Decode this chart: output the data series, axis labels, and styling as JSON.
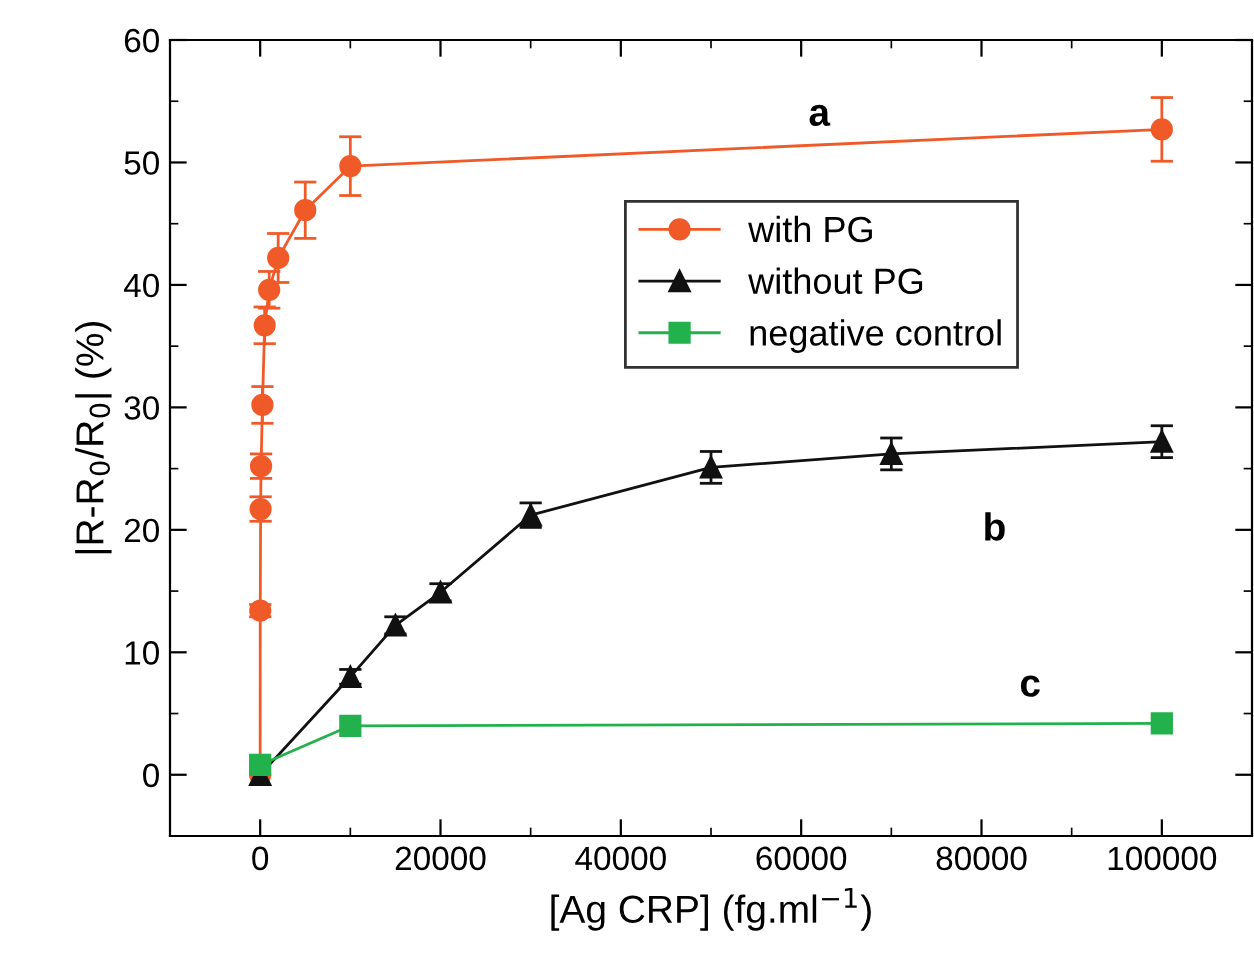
{
  "chart_data": {
    "type": "line",
    "xlabel": "[Ag CRP] (fg.ml$^{−1}$)",
    "ylabel": "|R-R$_{0}$/R$_{0}$| (%)",
    "xlim": [
      -10000,
      110000
    ],
    "ylim": [
      -5,
      60
    ],
    "xticks": [
      {
        "value": -10000,
        "label": null
      },
      0,
      {
        "value": 10000,
        "label": null
      },
      20000,
      {
        "value": 30000,
        "label": null
      },
      40000,
      {
        "value": 50000,
        "label": null
      },
      60000,
      {
        "value": 70000,
        "label": null
      },
      80000,
      {
        "value": 90000,
        "label": null
      },
      100000,
      {
        "value": 110000,
        "label": null
      }
    ],
    "yticks": [
      0,
      {
        "value": 5,
        "label": null
      },
      10,
      {
        "value": 15,
        "label": null
      },
      20,
      {
        "value": 25,
        "label": null
      },
      30,
      {
        "value": 35,
        "label": null
      },
      40,
      {
        "value": 45,
        "label": null
      },
      50,
      {
        "value": 55,
        "label": null
      },
      60
    ],
    "series": [
      {
        "name": "with PG",
        "color": "#f05a28",
        "marker": "circle",
        "x": [
          0,
          10,
          50,
          100,
          250,
          500,
          1000,
          2000,
          5000,
          10000,
          100000
        ],
        "values": [
          0,
          13.4,
          21.7,
          25.2,
          30.2,
          36.7,
          39.6,
          42.2,
          46.1,
          49.7,
          52.7
        ],
        "errors": [
          null,
          0.5,
          1,
          1,
          1.5,
          1.5,
          1.5,
          2,
          2.3,
          2.4,
          2.6
        ]
      },
      {
        "name": "without PG",
        "color": "#111111",
        "marker": "triangle",
        "x": [
          0,
          10000,
          15000,
          20000,
          30000,
          50000,
          70000,
          100000
        ],
        "values": [
          0,
          8,
          12.2,
          14.9,
          21.2,
          25.1,
          26.2,
          27.2
        ],
        "errors": [
          null,
          0.6,
          0.7,
          0.7,
          1,
          1.3,
          1.3,
          1.3
        ]
      },
      {
        "name": "negative control",
        "color": "#22b14c",
        "marker": "square",
        "x": [
          0,
          10000,
          100000
        ],
        "values": [
          0.8,
          4.0,
          4.2
        ]
      }
    ],
    "annotations": [
      "a",
      "b",
      "c"
    ],
    "legend": "top right",
    "grid": false
  }
}
